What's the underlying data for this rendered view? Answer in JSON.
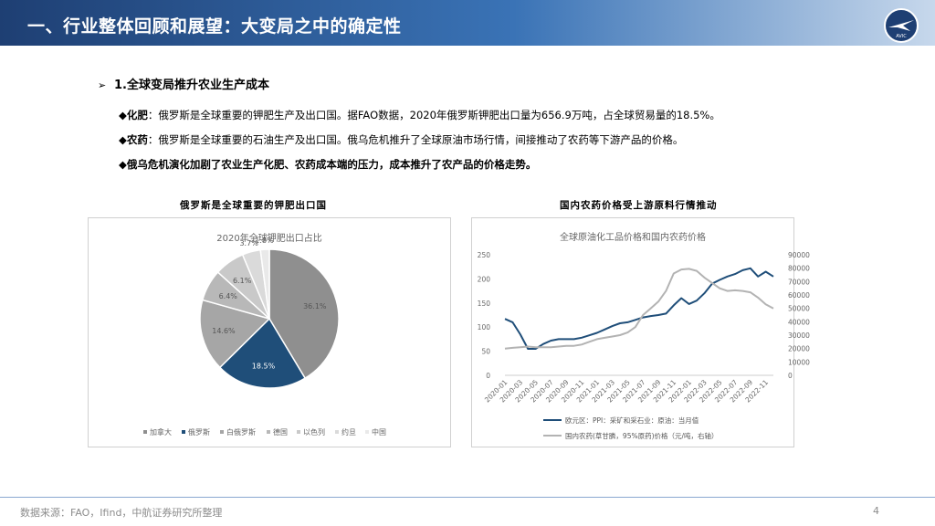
{
  "header": {
    "title": "一、行业整体回顾和展望：大变局之中的确定性",
    "logo_text": "AVIC"
  },
  "section": {
    "arrow": "➢",
    "title": "1.全球变局推升农业生产成本"
  },
  "bullets": [
    {
      "marker": "◆",
      "label": "化肥",
      "text": "：俄罗斯是全球重要的钾肥生产及出口国。据FAO数据，2020年俄罗斯钾肥出口量为656.9万吨，占全球贸易量的18.5%。"
    },
    {
      "marker": "◆",
      "label": "农药",
      "text": "：俄罗斯是全球重要的石油生产及出口国。俄乌危机推升了全球原油市场行情，间接推动了农药等下游产品的价格。"
    },
    {
      "marker": "◆",
      "label": "俄乌危机演化加剧了农业生产化肥、农药成本端的压力，成本推升了农产品的价格走势。",
      "text": ""
    }
  ],
  "chart_left_heading": "俄罗斯是全球重要的钾肥出口国",
  "chart_right_heading": "国内农药价格受上游原料行情推动",
  "chart_data": [
    {
      "type": "pie",
      "title": "2020年全球钾肥出口占比",
      "categories": [
        "加拿大",
        "俄罗斯",
        "白俄罗斯",
        "德国",
        "以色列",
        "约旦",
        "中国"
      ],
      "values": [
        36.1,
        18.5,
        14.6,
        6.4,
        6.1,
        3.7,
        1.8
      ],
      "labels": [
        "36.1%",
        "18.5%",
        "14.6%",
        "6.4%",
        "6.1%",
        "3.7%",
        "1.8%"
      ],
      "colors": [
        "#8f8f8f",
        "#1f4e79",
        "#a6a6a6",
        "#b8b8b8",
        "#c9c9c9",
        "#dadada",
        "#e9e9e9"
      ],
      "legend": "bottom"
    },
    {
      "type": "line",
      "title": "全球原油化工品价格和国内农药价格",
      "x_ticks": [
        "2020-01",
        "2020-03",
        "2020-05",
        "2020-07",
        "2020-09",
        "2020-11",
        "2021-01",
        "2021-03",
        "2021-05",
        "2021-07",
        "2021-09",
        "2021-11",
        "2022-01",
        "2022-03",
        "2022-05",
        "2022-07",
        "2022-09",
        "2022-11"
      ],
      "x_months": [
        "2020-01",
        "2020-02",
        "2020-03",
        "2020-04",
        "2020-05",
        "2020-06",
        "2020-07",
        "2020-08",
        "2020-09",
        "2020-10",
        "2020-11",
        "2020-12",
        "2021-01",
        "2021-02",
        "2021-03",
        "2021-04",
        "2021-05",
        "2021-06",
        "2021-07",
        "2021-08",
        "2021-09",
        "2021-10",
        "2021-11",
        "2021-12",
        "2022-01",
        "2022-02",
        "2022-03",
        "2022-04",
        "2022-05",
        "2022-06",
        "2022-07",
        "2022-08",
        "2022-09",
        "2022-10",
        "2022-11",
        "2022-12"
      ],
      "y_left": {
        "min": 0,
        "max": 250,
        "ticks": [
          "0",
          "50",
          "100",
          "150",
          "200",
          "250"
        ]
      },
      "y_right": {
        "min": 0,
        "max": 90000,
        "ticks": [
          "0",
          "10000",
          "20000",
          "30000",
          "40000",
          "50000",
          "60000",
          "70000",
          "80000",
          "90000"
        ]
      },
      "series": [
        {
          "name": "欧元区：PPI：采矿和采石业：原油：当月值",
          "axis": "left",
          "color": "#1f4e79",
          "values": [
            117,
            110,
            85,
            55,
            55,
            65,
            72,
            75,
            75,
            75,
            78,
            83,
            88,
            95,
            102,
            108,
            110,
            115,
            120,
            123,
            125,
            128,
            145,
            160,
            148,
            155,
            170,
            190,
            198,
            205,
            210,
            218,
            222,
            205,
            215,
            205
          ]
        },
        {
          "name": "国内农药(草甘膦，95%原药)价格（元/吨，右轴）",
          "axis": "right",
          "color": "#b3b3b3",
          "values": [
            20000,
            20500,
            21000,
            21500,
            21000,
            21000,
            21000,
            21500,
            22000,
            22000,
            23000,
            25000,
            27000,
            28000,
            29000,
            30000,
            32000,
            36000,
            45000,
            50000,
            55000,
            63000,
            76000,
            79000,
            79500,
            78000,
            73000,
            69000,
            65000,
            63000,
            63500,
            63000,
            62000,
            58000,
            53000,
            50000
          ]
        }
      ],
      "legend": "bottom"
    }
  ],
  "footer": {
    "source": "数据来源：FAO，Ifind，中航证券研究所整理",
    "page": "4"
  }
}
